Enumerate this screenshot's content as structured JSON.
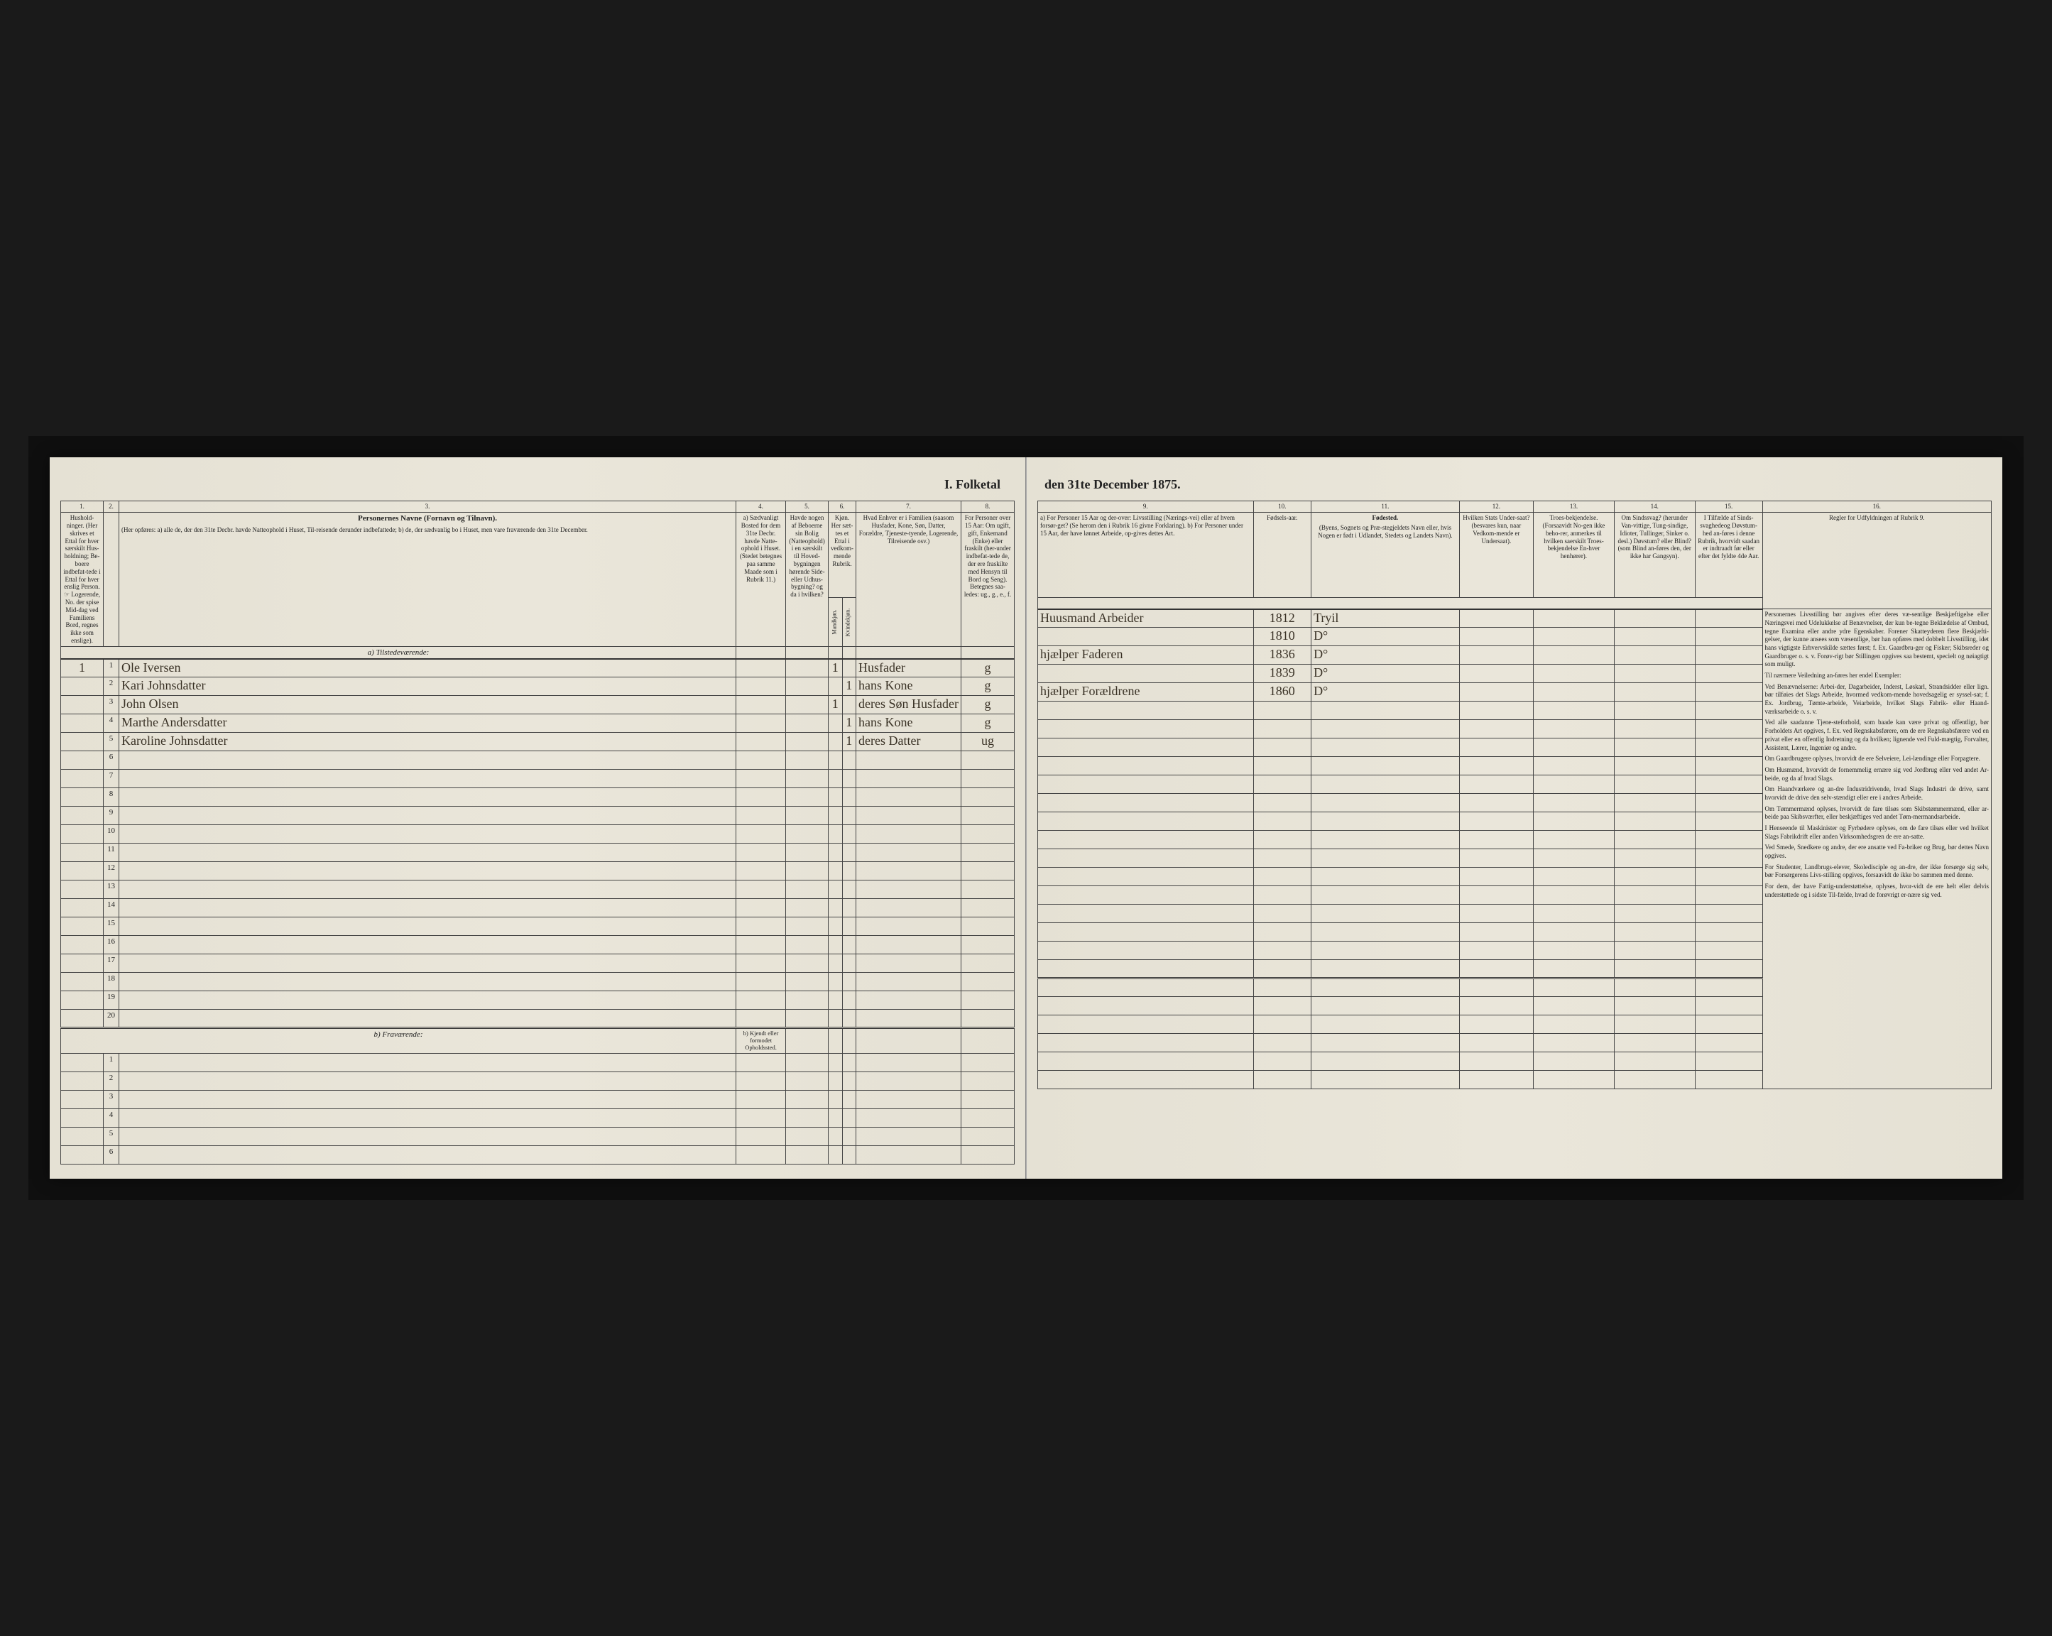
{
  "document": {
    "title_left": "I. Folketal",
    "title_right": "den 31te December 1875.",
    "background_color": "#e8e4d8",
    "ink_color": "#3a3226",
    "print_color": "#222222",
    "border_color": "#444444"
  },
  "left_page": {
    "col_nums": [
      "1.",
      "2.",
      "3.",
      "4.",
      "5.",
      "6.",
      "7.",
      "8."
    ],
    "headers": {
      "col1": "Hushold-\nninger.\n(Her skrives et Ettal for hver særskilt Hus-holdning; Be-boere indbefat-tede i Ettal for hver enslig Person.\n☞ Logerende, No. der spise Mid-dag ved Familiens Bord, regnes ikke som enslige).",
      "col3_title": "Personernes Navne (Fornavn og Tilnavn).",
      "col3_sub": "(Her opføres:\na) alle de, der den 31te Decbr. havde Natteophold i Huset, Til-reisende derunder indbefattede;\nb) de, der sædvanlig bo i Huset, men vare fraværende den 31te December.",
      "col4": "a) Sædvanligt Bosted for dem 31te Decbr. havde Natte-ophold i Huset. (Stedet betegnes paa samme Maade som i Rubrik 11.)",
      "col5": "Havde nogen af Beboerne sin Bolig (Natteophold) i en særskilt til Hoved-bygningen hørende Side-eller Udhus-bygning? og da i hvilken?",
      "col6": "Kjøn.\nHer sæt-tes et Ettal i vedkom-mende Rubrik.",
      "col6_sub_m": "Mandkjøn.",
      "col6_sub_k": "Kvindekjøn.",
      "col7": "Hvad Enhver er i Familien\n(saasom Husfader, Kone, Søn, Datter, Forældre, Tjeneste-tyende, Logerende, Tilreisende osv.)",
      "col8": "For Personer over 15 Aar: Om ugift, gift, Enkemand (Enke) eller fraskilt (her-under indbefat-tede de, der ere fraskilte med Hensyn til Bord og Seng). Betegnes saa-ledes: ug., g., e., f."
    },
    "section_a": "a) Tilstedeværende:",
    "section_b": "b) Fraværende:",
    "section_b_col4": "b) Kjendt eller formodet Opholdssted.",
    "rows_a": [
      {
        "n": "1",
        "hh": "1",
        "name": "Ole Iversen",
        "c4": "",
        "c5": "",
        "m": "1",
        "k": "",
        "rel": "Husfader",
        "ms": "g"
      },
      {
        "n": "2",
        "hh": "",
        "name": "Kari Johnsdatter",
        "c4": "",
        "c5": "",
        "m": "",
        "k": "1",
        "rel": "hans Kone",
        "ms": "g"
      },
      {
        "n": "3",
        "hh": "",
        "name": "John Olsen",
        "c4": "",
        "c5": "",
        "m": "1",
        "k": "",
        "rel": "deres Søn Husfader",
        "ms": "g"
      },
      {
        "n": "4",
        "hh": "",
        "name": "Marthe Andersdatter",
        "c4": "",
        "c5": "",
        "m": "",
        "k": "1",
        "rel": "hans Kone",
        "ms": "g"
      },
      {
        "n": "5",
        "hh": "",
        "name": "Karoline Johnsdatter",
        "c4": "",
        "c5": "",
        "m": "",
        "k": "1",
        "rel": "deres Datter",
        "ms": "ug"
      },
      {
        "n": "6"
      },
      {
        "n": "7"
      },
      {
        "n": "8"
      },
      {
        "n": "9"
      },
      {
        "n": "10"
      },
      {
        "n": "11"
      },
      {
        "n": "12"
      },
      {
        "n": "13"
      },
      {
        "n": "14"
      },
      {
        "n": "15"
      },
      {
        "n": "16"
      },
      {
        "n": "17"
      },
      {
        "n": "18"
      },
      {
        "n": "19"
      },
      {
        "n": "20"
      }
    ],
    "rows_b": [
      {
        "n": "1"
      },
      {
        "n": "2"
      },
      {
        "n": "3"
      },
      {
        "n": "4"
      },
      {
        "n": "5"
      },
      {
        "n": "6"
      }
    ]
  },
  "right_page": {
    "col_nums": [
      "9.",
      "10.",
      "11.",
      "12.",
      "13.",
      "14.",
      "15.",
      "16."
    ],
    "headers": {
      "col9": "a) For Personer 15 Aar og der-over: Livsstilling (Nærings-vei) eller af hvem forsør-get? (Se herom den i Rubrik 16 givne Forklaring).\nb) For Personer under 15 Aar, der have lønnet Arbeide, op-gives dettes Art.",
      "col10": "Fødsels-aar.",
      "col11_title": "Fødested.",
      "col11": "(Byens, Sognets og Præ-stegjeldets Navn eller, hvis Nogen er født i Udlandet, Stedets og Landets Navn).",
      "col12": "Hvilken Stats Under-saat?\n(besvares kun, naar Vedkom-mende er Undersaat).",
      "col13": "Troes-bekjendelse.\n(Forsaavidt No-gen ikke beho-rer, anmerkes til hvilken saerskilt Troes-bekjendelse En-hver henhører).",
      "col14": "Om Sindssvag? (herunder Van-vittige, Tung-sindige, Idioter, Tullinger, Sinker o. desl.) Døvstum? eller Blind? (som Blind an-føres den, der ikke har Gangsyn).",
      "col15": "I Tilfælde af Sinds-svaghedeog Døvstum-hed an-føres i denne Rubrik, hvorvidt saadan er indtraadt før eller efter det fyldte 4de Aar.",
      "col16_title": "Regler for Udfyldningen\naf\nRubrik 9."
    },
    "rows": [
      {
        "occ": "Huusmand Arbeider",
        "yr": "1812",
        "bp": "Tryil"
      },
      {
        "occ": "",
        "yr": "1810",
        "bp": "D°"
      },
      {
        "occ": "hjælper Faderen",
        "yr": "1836",
        "bp": "D°"
      },
      {
        "occ": "",
        "yr": "1839",
        "bp": "D°"
      },
      {
        "occ": "hjælper Forældrene",
        "yr": "1860",
        "bp": "D°"
      }
    ],
    "instructions": [
      "Personernes Livsstilling bør angives efter deres væ-sentlige Beskjæftigelse eller Næringsvei med Udelukkelse af Benævnelser, der kun be-tegne Beklædelse af Ombud, tegne Examina eller andre ydre Egenskaber. Forener Skatteyderen flere Beskjæfti-gelser, der kunne ansees som væsentlige, bør han opføres med dobbelt Livsstilling, idet hans vigtigste Erhvervskilde sættes først; f. Ex. Gaardbru-ger og Fisker; Skibsreder og Gaardbruger o. s. v. Forøv-rigt bør Stillingen opgives saa bestemt, specielt og nøiagtigt som muligt.",
      "Til nærmere Veiledning an-føres her endel Exempler:",
      "Ved Benævnelserne: Arbei-der, Dagarbeider, Inderst, Løskarl, Strandsidder eller lign. bør tilføies det Slags Arbeide, hvormed vedkom-mende hovedsagelig er syssel-sat; f. Ex. Jordbrug, Tømte-arbeide, Veiarbeide, hvilket Slags Fabrik- eller Haand-værksarbeide o. s. v.",
      "Ved alle saadanne Tjene-steforhold, som baade kan være privat og offentligt, bør Forholdets Art opgives, f. Ex. ved Regnskabsførere, om de ere Regnskabsførere ved en privat eller en offentlig Indretning og da hvilken; lignende ved Fuld-mægtig, Forvalter, Assistent, Lærer, Ingeniør og andre.",
      "Om Gaardbrugere oplyses, hvorvidt de ere Selveiere, Lei-lændinge eller Forpagtere.",
      "Om Husmænd, hvorvidt de fornemmelig ernære sig ved Jordbrug eller ved andet Ar-beide, og da af hvad Slags.",
      "Om Haandværkere og an-dre Industridrivende, hvad Slags Industri de drive, samt hvorvidt de drive den selv-stændigt eller ere i andres Arbeide.",
      "Om Tømmermænd oplyses, hvorvidt de fare tilsøs som Skibstømmermænd, eller ar-beide paa Skibsværfter, eller beskjæftiges ved andet Tøm-mermandsarbeide.",
      "I Henseende til Maskinister og Fyrbødere oplyses, om de fare tilsøs eller ved hvilket Slags Fabrikdrift eller anden Virksomhedsgren de ere an-satte.",
      "Ved Smede, Snedkere og andre, der ere ansatte ved Fa-briker og Brug, bør dettes Navn opgives.",
      "For Studenter, Landbrugs-elever, Skoledisciple og an-dre, der ikke forsørge sig selv, bør Forsørgerens Livs-stilling opgives, forsaavidt de ikke bo sammen med denne.",
      "For dem, der have Fattig-understøttelse, oplyses, hvor-vidt de ere helt eller delvis understøttede og i sidste Til-fælde, hvad de forøvrigt er-nære sig ved."
    ]
  }
}
